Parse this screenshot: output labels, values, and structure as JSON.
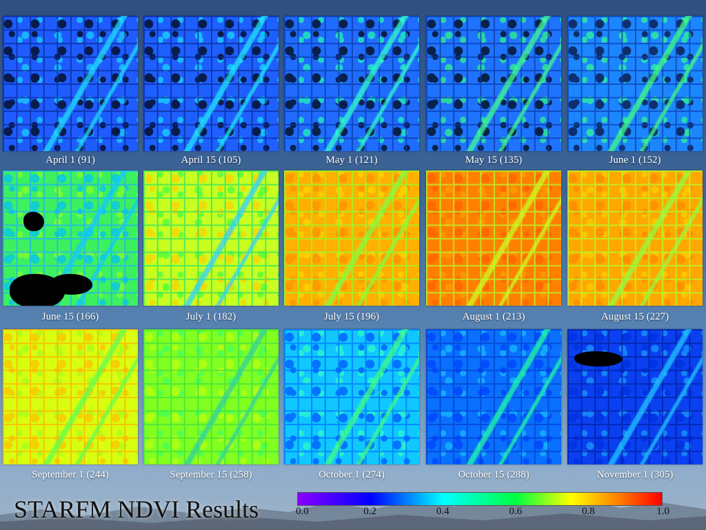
{
  "title": "STARFM NDVI Results",
  "tiles": [
    {
      "label": "April 1 (91)",
      "base": "#1e5cff",
      "road": "#0a2a9a",
      "n1": "#000000",
      "n2": "#19d8ff",
      "river": "#20e0ff"
    },
    {
      "label": "April 15 (105)",
      "base": "#1e60ff",
      "road": "#0a2a9a",
      "n1": "#000000",
      "n2": "#19e0ff",
      "river": "#20e8ff"
    },
    {
      "label": "May 1 (121)",
      "base": "#1f6cff",
      "road": "#0a3aa8",
      "n1": "#000000",
      "n2": "#20ffb0",
      "river": "#30ffd0"
    },
    {
      "label": "May 15 (135)",
      "base": "#1f74ff",
      "road": "#0a3aa8",
      "n1": "#000000",
      "n2": "#30ff80",
      "river": "#40ff90"
    },
    {
      "label": "June 1 (152)",
      "base": "#1c86ff",
      "road": "#0a40b0",
      "n1": "#0a0a30",
      "n2": "#30ff90",
      "river": "#40ff80"
    },
    {
      "label": "June 15 (166)",
      "base": "#3cf060",
      "road": "#1fb0ff",
      "n1": "#00c0ff",
      "n2": "#90ff20",
      "river": "#10c8ff"
    },
    {
      "label": "July 1 (182)",
      "base": "#c8ff20",
      "road": "#30e060",
      "n1": "#ffd000",
      "n2": "#40ff40",
      "river": "#30d0ff"
    },
    {
      "label": "July 15 (196)",
      "base": "#ffb000",
      "road": "#90ff30",
      "n1": "#ff9000",
      "n2": "#ffd800",
      "river": "#80ff40"
    },
    {
      "label": "August 1 (213)",
      "base": "#ff8000",
      "road": "#b0ff30",
      "n1": "#ff6000",
      "n2": "#ffa000",
      "river": "#c8ff20"
    },
    {
      "label": "August 15 (227)",
      "base": "#ffa800",
      "road": "#b0ff30",
      "n1": "#ff8800",
      "n2": "#ffd000",
      "river": "#90ff40"
    },
    {
      "label": "September 1 (244)",
      "base": "#d8ff10",
      "road": "#ffb000",
      "n1": "#ffc000",
      "n2": "#a0ff20",
      "river": "#60ff50"
    },
    {
      "label": "September 15 (258)",
      "base": "#80ff20",
      "road": "#40e040",
      "n1": "#c0ff10",
      "n2": "#40ff60",
      "river": "#30d0a0"
    },
    {
      "label": "October 1 (274)",
      "base": "#10c8ff",
      "road": "#0070ff",
      "n1": "#0050ff",
      "n2": "#30ffc0",
      "river": "#40ff80"
    },
    {
      "label": "October 15 (288)",
      "base": "#0a70ff",
      "road": "#0040d0",
      "n1": "#0040ff",
      "n2": "#18c0ff",
      "river": "#20ffa0"
    },
    {
      "label": "November 1 (305)",
      "base": "#0a40f0",
      "road": "#0020a0",
      "n1": "#0030e0",
      "n2": "#1aa0ff",
      "river": "#20c8ff"
    }
  ],
  "colorbar": {
    "ticks": [
      "0.0",
      "0.2",
      "0.4",
      "0.6",
      "0.8",
      "1.0"
    ]
  }
}
